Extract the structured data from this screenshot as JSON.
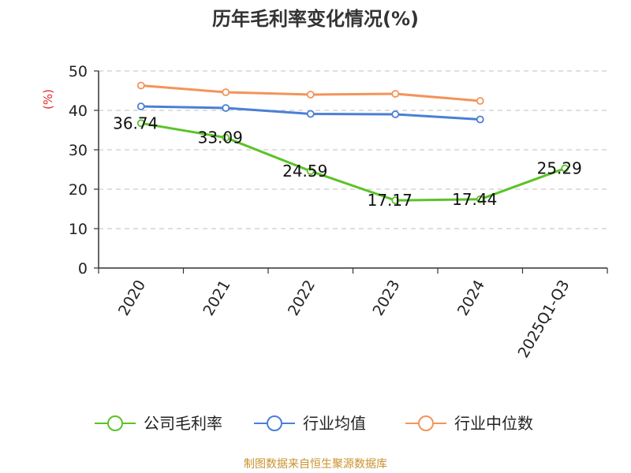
{
  "chart_data": {
    "type": "line",
    "title": "历年毛利率变化情况(%)",
    "ylabel": "(%)",
    "xlabel": "",
    "ylim": [
      0,
      50
    ],
    "yticks": [
      0,
      10,
      20,
      30,
      40,
      50
    ],
    "grid": true,
    "legend_position": "bottom",
    "categories": [
      "2020",
      "2021",
      "2022",
      "2023",
      "2024",
      "2025Q1-Q3"
    ],
    "series": [
      {
        "name": "公司毛利率",
        "color": "#5bc328",
        "values": [
          36.74,
          33.09,
          24.59,
          17.17,
          17.44,
          25.29
        ],
        "data_labels": [
          "36.74",
          "33.09",
          "24.59",
          "17.17",
          "17.44",
          "25.29"
        ]
      },
      {
        "name": "行业均值",
        "color": "#4a7fd6",
        "values": [
          41.0,
          40.6,
          39.1,
          39.0,
          37.7,
          null
        ]
      },
      {
        "name": "行业中位数",
        "color": "#f4935b",
        "values": [
          46.3,
          44.6,
          44.0,
          44.2,
          42.4,
          null
        ]
      }
    ]
  },
  "footer": {
    "source": "制图数据来自恒生聚源数据库"
  }
}
